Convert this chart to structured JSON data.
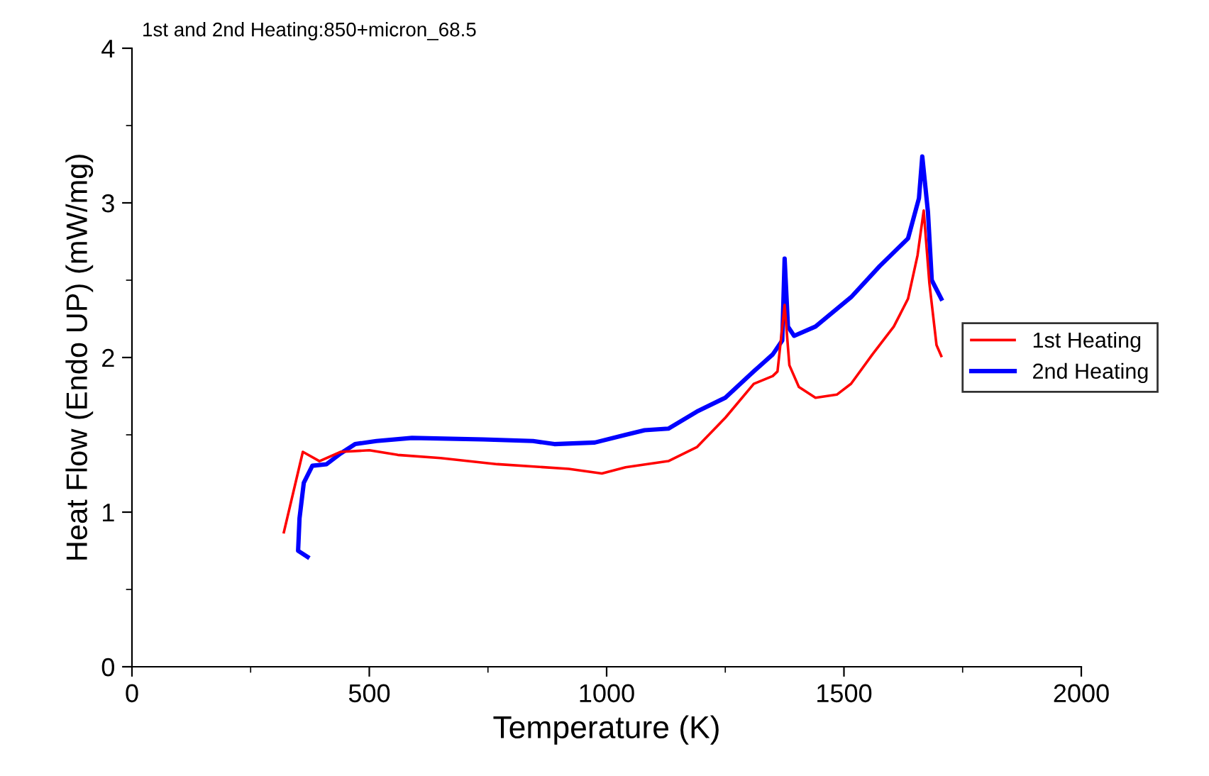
{
  "chart_data": {
    "type": "line",
    "title": "1st and 2nd Heating:850+micron_68.5",
    "xlabel": "Temperature (K)",
    "ylabel": "Heat Flow (Endo UP) (mW/mg)",
    "xlim": [
      0,
      2000
    ],
    "xticks": [
      0,
      500,
      1000,
      1500,
      2000
    ],
    "ylim": [
      0,
      4
    ],
    "yticks": [
      0,
      1,
      2,
      3,
      4
    ],
    "grid": false,
    "legend": "right",
    "line_style": "solid",
    "marker": "none",
    "series": [
      {
        "name": "1st Heating",
        "color": "#ff0000",
        "x": [
          320,
          360,
          395,
          440,
          500,
          560,
          650,
          770,
          920,
          990,
          1040,
          1130,
          1190,
          1250,
          1310,
          1350,
          1360,
          1375,
          1385,
          1405,
          1440,
          1485,
          1515,
          1560,
          1605,
          1635,
          1655,
          1668,
          1680,
          1695,
          1705
        ],
        "values": [
          0.87,
          1.39,
          1.33,
          1.39,
          1.4,
          1.37,
          1.35,
          1.31,
          1.28,
          1.25,
          1.29,
          1.33,
          1.42,
          1.61,
          1.83,
          1.88,
          1.91,
          2.34,
          1.95,
          1.81,
          1.74,
          1.76,
          1.83,
          2.02,
          2.2,
          2.38,
          2.66,
          2.95,
          2.48,
          2.08,
          2.01
        ]
      },
      {
        "name": "2nd Heating",
        "color": "#0000ff",
        "x": [
          370,
          350,
          353,
          362,
          380,
          410,
          440,
          470,
          515,
          590,
          740,
          845,
          890,
          975,
          1040,
          1080,
          1130,
          1190,
          1250,
          1310,
          1350,
          1370,
          1375,
          1382,
          1395,
          1440,
          1515,
          1575,
          1635,
          1658,
          1665,
          1677,
          1685,
          1705
        ],
        "values": [
          0.71,
          0.75,
          0.96,
          1.19,
          1.3,
          1.31,
          1.38,
          1.44,
          1.46,
          1.48,
          1.47,
          1.46,
          1.44,
          1.45,
          1.5,
          1.53,
          1.54,
          1.65,
          1.74,
          1.91,
          2.02,
          2.11,
          2.64,
          2.2,
          2.14,
          2.2,
          2.39,
          2.59,
          2.77,
          3.03,
          3.3,
          2.94,
          2.5,
          2.38
        ]
      }
    ]
  }
}
